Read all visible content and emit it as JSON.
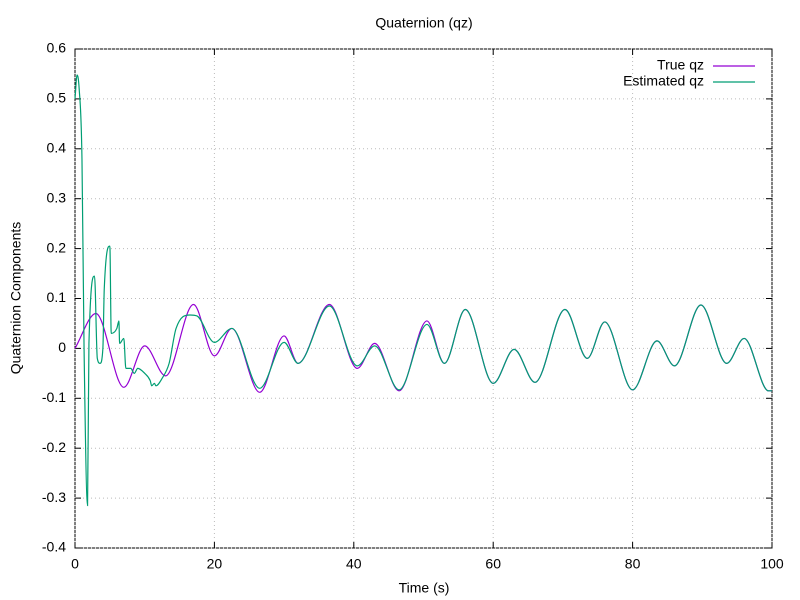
{
  "chart_data": {
    "type": "line",
    "title": "Quaternion (qz)",
    "x_label": "Time (s)",
    "y_label": "Quaternion Components",
    "xlim": [
      0,
      100
    ],
    "ylim": [
      -0.4,
      0.6
    ],
    "xticks": [
      0,
      20,
      40,
      60,
      80,
      100
    ],
    "yticks": [
      -0.4,
      -0.3,
      -0.2,
      -0.1,
      0,
      0.1,
      0.2,
      0.3,
      0.4,
      0.5,
      0.6
    ],
    "grid": true,
    "legend": "top-right",
    "series": [
      {
        "name": "True qz",
        "color": "#9400d3",
        "x": [
          0,
          3,
          7,
          10,
          13,
          17,
          20,
          22.5,
          26.5,
          30,
          32,
          36.5,
          40.5,
          43,
          46.5,
          50.5,
          53,
          56,
          60,
          63,
          66,
          70.3,
          73.5,
          76,
          80,
          83.5,
          86,
          89.8,
          93.5,
          96,
          99.5,
          100
        ],
        "values": [
          0,
          0.07,
          -0.078,
          0.005,
          -0.055,
          0.088,
          -0.015,
          0.04,
          -0.088,
          0.025,
          -0.03,
          0.088,
          -0.04,
          0.01,
          -0.085,
          0.055,
          -0.03,
          0.078,
          -0.07,
          -0.002,
          -0.068,
          0.078,
          -0.02,
          0.053,
          -0.083,
          0.015,
          -0.035,
          0.087,
          -0.03,
          0.02,
          -0.085,
          -0.085
        ]
      },
      {
        "name": "Estimated qz",
        "color": "#009e73",
        "x": [
          0,
          0.3,
          0.6,
          1,
          1.3,
          1.8,
          2,
          2.8,
          3.2,
          3.6,
          4,
          4.2,
          5,
          5.2,
          6,
          6.3,
          6.4,
          7,
          7.3,
          8,
          8.5,
          9,
          10,
          10.8,
          11,
          11.4,
          11.6,
          12.5,
          13.5,
          14.5,
          16.5,
          17.5,
          20,
          22.5,
          26.5,
          30,
          32,
          36.5,
          40.5,
          43,
          46.5,
          50.5,
          53,
          56,
          60,
          63,
          66,
          70.3,
          73.5,
          76,
          80,
          83.5,
          86,
          89.8,
          93.5,
          96,
          99.5,
          100
        ],
        "values": [
          0.5,
          0.548,
          0.52,
          0.38,
          0,
          -0.315,
          0.01,
          0.145,
          -0.02,
          -0.03,
          0,
          0.12,
          0.205,
          0.03,
          0.04,
          0.055,
          0.01,
          0.02,
          -0.04,
          -0.04,
          -0.05,
          -0.04,
          -0.05,
          -0.065,
          -0.075,
          -0.07,
          -0.075,
          -0.06,
          -0.03,
          0.04,
          0.067,
          0.065,
          0.012,
          0.04,
          -0.08,
          0.012,
          -0.03,
          0.085,
          -0.035,
          0.005,
          -0.083,
          0.048,
          -0.03,
          0.078,
          -0.07,
          -0.002,
          -0.068,
          0.078,
          -0.02,
          0.053,
          -0.083,
          0.015,
          -0.035,
          0.087,
          -0.03,
          0.02,
          -0.085,
          -0.085
        ]
      }
    ]
  }
}
